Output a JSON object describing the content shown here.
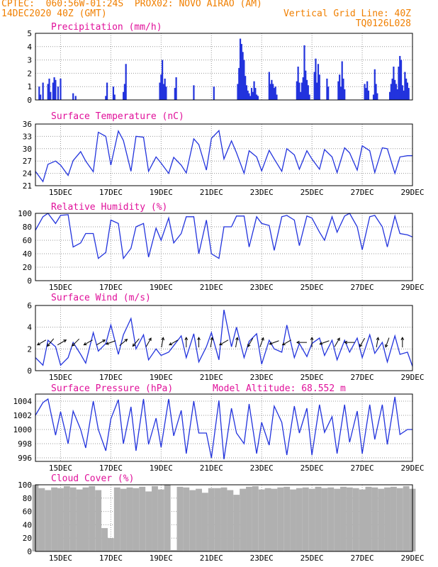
{
  "header": {
    "left_line1": "CPTEC:  060:56W-01:24S  PROX02: NOVO AIRAO (AM)",
    "left_line2": "14DEC2020 40Z (GMT)",
    "right_line2": "Vertical Grid Line: 40Z",
    "right_line3": "TQ0126L028"
  },
  "colors": {
    "header": "#f07f00",
    "title": "#e0109a",
    "line": "#2233dd",
    "cloud": "#b0b0b0",
    "wind_arrow": "#000000"
  },
  "x_tick_labels": [
    "15DEC",
    "17DEC",
    "19DEC",
    "21DEC",
    "23DEC",
    "25DEC",
    "27DEC",
    "29DEC"
  ],
  "chart_data": [
    {
      "type": "bar",
      "title": "Precipitation (mm/h)",
      "ylim": [
        0,
        5
      ],
      "yticks": [
        0,
        1,
        2,
        3,
        4,
        5
      ],
      "grid": true,
      "x_unit": "day",
      "xlim": [
        14.0,
        29.0
      ],
      "series": [
        {
          "x": [
            14.15,
            14.2,
            14.3,
            14.5,
            14.55,
            14.6,
            14.7,
            14.75,
            14.8,
            14.9,
            15.0,
            15.5,
            15.6,
            16.8,
            16.85,
            17.1,
            17.15,
            17.5,
            17.55,
            17.6,
            18.95,
            19.0,
            19.05,
            19.1,
            19.15,
            19.2,
            19.55,
            19.6,
            20.3,
            21.1,
            22.05,
            22.1,
            22.15,
            22.2,
            22.25,
            22.3,
            22.35,
            22.4,
            22.45,
            22.5,
            22.55,
            22.6,
            22.65,
            22.7,
            22.75,
            22.8,
            22.85,
            23.3,
            23.35,
            23.4,
            23.45,
            23.5,
            23.55,
            23.6,
            24.4,
            24.45,
            24.5,
            24.55,
            24.6,
            24.65,
            24.7,
            24.75,
            24.8,
            24.85,
            24.9,
            25.1,
            25.15,
            25.2,
            25.25,
            25.3,
            25.6,
            25.65,
            26.05,
            26.1,
            26.15,
            26.2,
            26.25,
            26.3,
            27.1,
            27.15,
            27.2,
            27.25,
            27.45,
            27.5,
            27.55,
            27.6,
            28.1,
            28.15,
            28.2,
            28.25,
            28.3,
            28.35,
            28.4,
            28.45,
            28.5,
            28.55,
            28.6,
            28.65,
            28.7,
            28.75,
            28.8,
            28.85
          ],
          "values": [
            1.0,
            0.4,
            1.3,
            1.2,
            1.6,
            0.6,
            1.3,
            1.7,
            1.5,
            1.0,
            1.6,
            0.5,
            0.3,
            0.3,
            1.3,
            1.0,
            0.4,
            0.6,
            1.2,
            2.7,
            1.3,
            1.9,
            3.0,
            1.2,
            1.6,
            1.0,
            0.9,
            1.7,
            1.1,
            1.0,
            1.2,
            2.4,
            4.6,
            4.2,
            3.6,
            3.0,
            1.8,
            1.1,
            0.7,
            0.5,
            0.3,
            0.9,
            0.6,
            1.4,
            0.9,
            0.4,
            0.3,
            2.1,
            1.2,
            1.5,
            1.2,
            0.9,
            1.0,
            0.4,
            1.4,
            2.5,
            1.3,
            0.6,
            1.3,
            1.7,
            4.1,
            2.2,
            1.5,
            1.1,
            0.4,
            2.1,
            3.1,
            1.3,
            2.7,
            1.9,
            1.6,
            1.0,
            1.4,
            1.9,
            1.0,
            2.9,
            1.6,
            0.8,
            1.2,
            0.9,
            1.4,
            0.7,
            0.4,
            2.3,
            1.2,
            0.5,
            0.6,
            1.2,
            1.6,
            2.5,
            1.5,
            1.2,
            0.8,
            2.5,
            3.3,
            3.0,
            1.1,
            0.7,
            2.1,
            1.6,
            1.3,
            0.9
          ]
        }
      ]
    },
    {
      "type": "line",
      "title": "Surface Temperature (nC)",
      "ylim": [
        21,
        36
      ],
      "yticks": [
        21,
        24,
        27,
        30,
        33,
        36
      ],
      "grid": true,
      "xlim": [
        14.0,
        29.0
      ],
      "series": [
        {
          "x": [
            14.0,
            14.3,
            14.5,
            14.8,
            15.0,
            15.3,
            15.5,
            15.8,
            16.0,
            16.3,
            16.5,
            16.8,
            17.0,
            17.3,
            17.5,
            17.8,
            18.0,
            18.3,
            18.5,
            18.8,
            19.0,
            19.3,
            19.5,
            19.8,
            20.0,
            20.3,
            20.5,
            20.8,
            21.0,
            21.3,
            21.5,
            21.8,
            22.0,
            22.3,
            22.5,
            22.8,
            23.0,
            23.3,
            23.5,
            23.8,
            24.0,
            24.3,
            24.5,
            24.8,
            25.0,
            25.3,
            25.5,
            25.8,
            26.0,
            26.3,
            26.5,
            26.8,
            27.0,
            27.3,
            27.5,
            27.8,
            28.0,
            28.3,
            28.5,
            28.8,
            29.0
          ],
          "values": [
            24.5,
            22.0,
            26.2,
            27.0,
            26.0,
            23.5,
            27.1,
            29.3,
            27.0,
            24.4,
            34.0,
            33.0,
            26.0,
            34.3,
            32.0,
            24.5,
            33.0,
            32.8,
            24.5,
            28.0,
            26.5,
            24.0,
            27.9,
            26.0,
            24.1,
            32.4,
            31.0,
            24.8,
            32.5,
            34.4,
            27.5,
            31.9,
            29.0,
            24.0,
            29.5,
            28.0,
            24.6,
            29.6,
            27.5,
            24.5,
            30.0,
            28.5,
            25.0,
            29.5,
            27.5,
            25.0,
            29.8,
            28.0,
            24.2,
            30.2,
            29.0,
            24.8,
            30.7,
            29.5,
            24.2,
            30.2,
            30.0,
            24.0,
            28.0,
            28.3,
            28.3
          ]
        }
      ]
    },
    {
      "type": "line",
      "title": "Relative Humidity (%)",
      "ylim": [
        0,
        100
      ],
      "yticks": [
        0,
        20,
        40,
        60,
        80,
        100
      ],
      "grid": true,
      "xlim": [
        14.0,
        29.0
      ],
      "series": [
        {
          "x": [
            14.0,
            14.3,
            14.5,
            14.8,
            15.0,
            15.3,
            15.5,
            15.8,
            16.0,
            16.3,
            16.5,
            16.8,
            17.0,
            17.3,
            17.5,
            17.8,
            18.0,
            18.3,
            18.5,
            18.8,
            19.0,
            19.3,
            19.5,
            19.8,
            20.0,
            20.3,
            20.5,
            20.8,
            21.0,
            21.3,
            21.5,
            21.8,
            22.0,
            22.3,
            22.5,
            22.8,
            23.0,
            23.3,
            23.5,
            23.8,
            24.0,
            24.3,
            24.5,
            24.8,
            25.0,
            25.3,
            25.5,
            25.8,
            26.0,
            26.3,
            26.5,
            26.8,
            27.0,
            27.3,
            27.5,
            27.8,
            28.0,
            28.3,
            28.5,
            28.8,
            29.0
          ],
          "values": [
            75,
            95,
            100,
            85,
            97,
            98,
            50,
            56,
            70,
            70,
            33,
            42,
            90,
            85,
            33,
            48,
            80,
            85,
            35,
            78,
            60,
            93,
            56,
            70,
            95,
            95,
            40,
            90,
            40,
            33,
            80,
            80,
            96,
            96,
            50,
            95,
            85,
            82,
            45,
            95,
            97,
            90,
            52,
            96,
            93,
            72,
            60,
            95,
            72,
            96,
            100,
            80,
            46,
            95,
            97,
            80,
            50,
            96,
            70,
            68,
            65
          ]
        }
      ]
    },
    {
      "type": "line",
      "title": "Surface Wind (m/s)",
      "ylim": [
        0,
        6
      ],
      "yticks": [
        0,
        2,
        4,
        6
      ],
      "grid": true,
      "xlim": [
        14.0,
        29.0
      ],
      "series": [
        {
          "x": [
            14.0,
            14.3,
            14.5,
            14.8,
            15.0,
            15.3,
            15.5,
            15.8,
            16.0,
            16.3,
            16.5,
            16.8,
            17.0,
            17.3,
            17.5,
            17.8,
            18.0,
            18.3,
            18.5,
            18.8,
            19.0,
            19.3,
            19.5,
            19.8,
            20.0,
            20.3,
            20.5,
            20.8,
            21.0,
            21.3,
            21.5,
            21.8,
            22.0,
            22.3,
            22.5,
            22.8,
            23.0,
            23.3,
            23.5,
            23.8,
            24.0,
            24.3,
            24.5,
            24.8,
            25.0,
            25.3,
            25.5,
            25.8,
            26.0,
            26.3,
            26.5,
            26.8,
            27.0,
            27.3,
            27.5,
            27.8,
            28.0,
            28.3,
            28.5,
            28.8,
            29.0
          ],
          "values": [
            1.2,
            0.5,
            2.8,
            2.2,
            0.5,
            1.2,
            2.6,
            1.5,
            0.7,
            3.5,
            1.8,
            2.5,
            4.2,
            1.5,
            3.3,
            4.8,
            2.0,
            3.3,
            1.0,
            2.0,
            1.4,
            1.7,
            2.3,
            3.2,
            1.2,
            3.4,
            0.8,
            2.2,
            3.5,
            1.0,
            5.6,
            2.2,
            4.0,
            1.2,
            2.7,
            3.4,
            0.6,
            2.8,
            2.0,
            1.7,
            4.2,
            1.2,
            2.5,
            1.3,
            2.5,
            3.0,
            1.4,
            2.8,
            1.0,
            2.8,
            1.7,
            3.0,
            1.2,
            3.3,
            1.6,
            2.6,
            0.8,
            3.2,
            1.5,
            1.7,
            0.4
          ]
        }
      ],
      "wind_arrow_days": [
        14.25,
        14.6,
        15.05,
        15.6,
        16.1,
        16.6,
        17.0,
        17.5,
        18.0,
        18.5,
        19.05,
        19.5,
        20.0,
        20.5,
        21.0,
        21.5,
        22.0,
        22.55,
        23.0,
        23.5,
        24.0,
        24.6,
        25.0,
        25.5,
        26.0,
        26.5,
        27.0,
        27.6,
        28.0,
        28.6
      ],
      "wind_arrow_angles_deg": [
        210,
        230,
        30,
        225,
        210,
        30,
        200,
        40,
        230,
        60,
        80,
        210,
        90,
        90,
        80,
        210,
        80,
        240,
        70,
        200,
        210,
        180,
        90,
        200,
        60,
        180,
        240,
        80,
        250,
        90
      ]
    },
    {
      "type": "line",
      "title": "Surface Pressure (hPa)",
      "annotation": "Model Altitude: 68.552 m",
      "ylim": [
        995.5,
        1005
      ],
      "yticks": [
        996,
        998,
        1000,
        1002,
        1004
      ],
      "grid": true,
      "xlim": [
        14.0,
        29.0
      ],
      "series": [
        {
          "x": [
            14.0,
            14.3,
            14.5,
            14.8,
            15.0,
            15.3,
            15.5,
            15.8,
            16.0,
            16.3,
            16.5,
            16.8,
            17.0,
            17.3,
            17.5,
            17.8,
            18.0,
            18.3,
            18.5,
            18.8,
            19.0,
            19.3,
            19.5,
            19.8,
            20.0,
            20.3,
            20.5,
            20.8,
            21.0,
            21.3,
            21.5,
            21.8,
            22.0,
            22.3,
            22.5,
            22.8,
            23.0,
            23.3,
            23.5,
            23.8,
            24.0,
            24.3,
            24.5,
            24.8,
            25.0,
            25.3,
            25.5,
            25.8,
            26.0,
            26.3,
            26.5,
            26.8,
            27.0,
            27.3,
            27.5,
            27.8,
            28.0,
            28.3,
            28.5,
            28.8,
            29.0
          ],
          "values": [
            1002,
            1003.8,
            1004.3,
            999.2,
            1002.5,
            998,
            1002.6,
            1000,
            997.4,
            1004.0,
            1000,
            997,
            1001.5,
            1004.2,
            998,
            1003.2,
            997,
            1004.3,
            997.9,
            1001.6,
            997.5,
            1004.3,
            999.1,
            1002.7,
            996.6,
            1004.0,
            999.5,
            999.5,
            996,
            1004.1,
            995.8,
            1003.0,
            999.5,
            998,
            1003.6,
            996.6,
            1001,
            997.8,
            1003.3,
            1001,
            996.4,
            1003.3,
            999.5,
            1003.0,
            996.4,
            1003.5,
            999.6,
            1001.8,
            996.6,
            1003.5,
            998.2,
            1002.6,
            996.6,
            1003.5,
            998.6,
            1003.5,
            997.9,
            1004.6,
            999.3,
            1000,
            1000
          ]
        }
      ]
    },
    {
      "type": "bar",
      "title": "Cloud Cover (%)",
      "ylim": [
        0,
        100
      ],
      "yticks": [
        0,
        20,
        40,
        60,
        80,
        100
      ],
      "grid": true,
      "xlim": [
        14.0,
        29.0
      ],
      "series": [
        {
          "x": [
            14.0,
            14.25,
            14.5,
            14.75,
            15.0,
            15.25,
            15.5,
            15.75,
            16.0,
            16.25,
            16.5,
            16.75,
            17.0,
            17.25,
            17.5,
            17.75,
            18.0,
            18.25,
            18.5,
            18.75,
            19.0,
            19.25,
            19.5,
            19.75,
            20.0,
            20.25,
            20.5,
            20.75,
            21.0,
            21.25,
            21.5,
            21.75,
            22.0,
            22.25,
            22.5,
            22.75,
            23.0,
            23.25,
            23.5,
            23.75,
            24.0,
            24.25,
            24.5,
            24.75,
            25.0,
            25.25,
            25.5,
            25.75,
            26.0,
            26.25,
            26.5,
            26.75,
            27.0,
            27.25,
            27.5,
            27.75,
            28.0,
            28.25,
            28.5,
            28.75,
            29.0
          ],
          "values": [
            100,
            95,
            92,
            96,
            95,
            98,
            96,
            93,
            96,
            98,
            92,
            35,
            20,
            96,
            94,
            96,
            95,
            97,
            90,
            98,
            93,
            100,
            2,
            97,
            96,
            92,
            94,
            88,
            95,
            95,
            96,
            92,
            85,
            94,
            97,
            98,
            93,
            95,
            94,
            96,
            97,
            93,
            95,
            96,
            94,
            97,
            95,
            96,
            94,
            97,
            96,
            95,
            93,
            97,
            96,
            94,
            96,
            97,
            95,
            98,
            94
          ]
        }
      ]
    }
  ]
}
